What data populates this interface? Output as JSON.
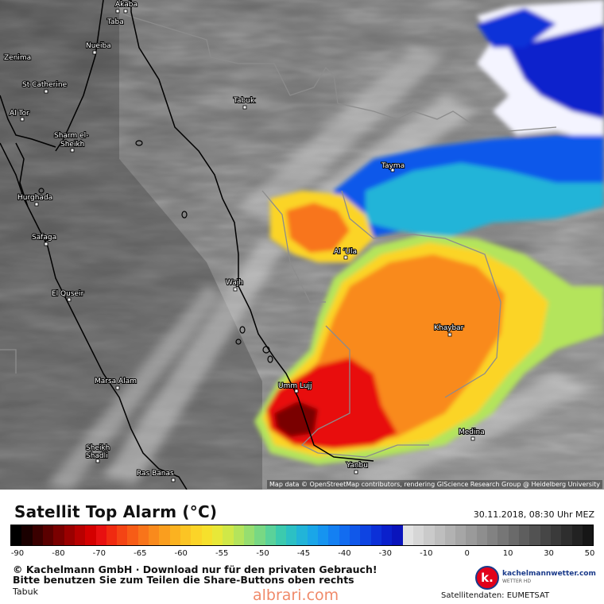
{
  "map": {
    "attribution": "Map data © OpenStreetMap contributors, rendering GIScience Research Group @ Heidelberg University",
    "cities": [
      {
        "name": "Akaba"
      },
      {
        "name": "Taba"
      },
      {
        "name": "Nueiba"
      },
      {
        "name": "Zenima"
      },
      {
        "name": "St Catherine"
      },
      {
        "name": "Tabuk"
      },
      {
        "name": "Al Tor"
      },
      {
        "name": "Sharm el-"
      },
      {
        "name": "Sheikh"
      },
      {
        "name": "Tayma"
      },
      {
        "name": "Hurghada"
      },
      {
        "name": "Safaga"
      },
      {
        "name": "Al ‘Ula"
      },
      {
        "name": "Wajh"
      },
      {
        "name": "El Quseir"
      },
      {
        "name": "Khaybar"
      },
      {
        "name": "Marsa Alam"
      },
      {
        "name": "Umm Lujj"
      },
      {
        "name": "Medina"
      },
      {
        "name": "Sheikh"
      },
      {
        "name": "Shadli"
      },
      {
        "name": "Yanbu"
      },
      {
        "name": "Ras Banas"
      }
    ]
  },
  "legend": {
    "title": "Satellit Top Alarm (°C)",
    "timestamp": "30.11.2018, 08:30 Uhr MEZ",
    "tick_labels": [
      "-90",
      "-80",
      "-70",
      "-65",
      "-60",
      "-55",
      "-50",
      "-45",
      "-40",
      "-30",
      "-10",
      "0",
      "10",
      "30",
      "50"
    ],
    "scale_colors": [
      "#000000",
      "#1a0000",
      "#3a0000",
      "#5a0000",
      "#7a0000",
      "#9a0000",
      "#b80000",
      "#d40000",
      "#e81010",
      "#f02a10",
      "#f44414",
      "#f75c16",
      "#f8741a",
      "#f98a1c",
      "#fa9e1e",
      "#fbb220",
      "#fbc424",
      "#fbd428",
      "#f6e02c",
      "#e8e838",
      "#d0e848",
      "#b4e45c",
      "#96de70",
      "#78d884",
      "#5ad29a",
      "#3ccaae",
      "#2cc0c4",
      "#22b4d8",
      "#1aa6e8",
      "#1694f0",
      "#1480f2",
      "#126cf0",
      "#1058ea",
      "#0e44e2",
      "#0c30d8",
      "#0a20cc",
      "#0a14bc",
      "#e2e2e2",
      "#d6d6d6",
      "#cacaca",
      "#bebebe",
      "#b2b2b2",
      "#a6a6a6",
      "#9a9a9a",
      "#8e8e8e",
      "#828282",
      "#767676",
      "#6a6a6a",
      "#5e5e5e",
      "#525252",
      "#464646",
      "#3a3a3a",
      "#2e2e2e",
      "#222222",
      "#161616"
    ]
  },
  "footer": {
    "copyright_line1": "© Kachelmann GmbH · Download nur für den privaten Gebrauch!",
    "copyright_line2": "Bitte benutzen Sie zum Teilen die Share-Buttons oben rechts",
    "place_name": "Tabuk",
    "watermark": "albrari.com",
    "logo_glyph": "k.",
    "logo_name": "kachelmannwetter.com",
    "logo_sub": "WETTER HD",
    "satellite_data": "Satellitendaten: EUMETSAT"
  }
}
